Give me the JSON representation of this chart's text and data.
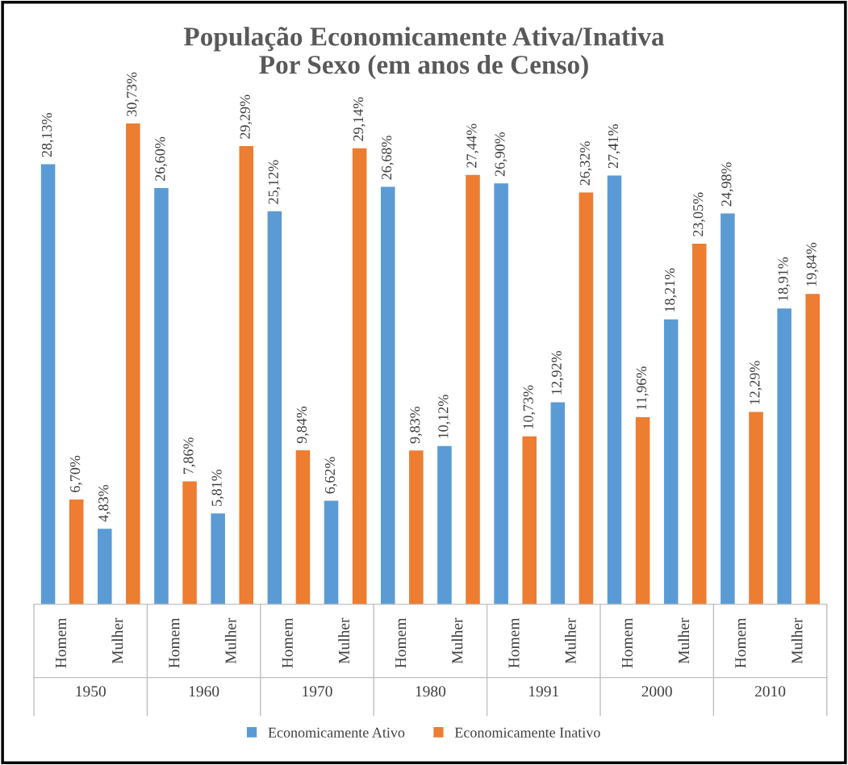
{
  "chart_data": {
    "type": "bar",
    "title": "População Economicamente Ativa/Inativa\nPor Sexo (em anos de Censo)",
    "categories": [
      "Homem",
      "Mulher",
      "Homem",
      "Mulher",
      "Homem",
      "Mulher",
      "Homem",
      "Mulher",
      "Homem",
      "Mulher",
      "Homem",
      "Mulher",
      "Homem",
      "Mulher"
    ],
    "annotations": [
      "1950",
      "1960",
      "1970",
      "1980",
      "1991",
      "2000",
      "2010"
    ],
    "series": [
      {
        "name": "Economicamente Ativo",
        "color": "#5b9bd5",
        "values": [
          28.13,
          4.83,
          26.6,
          5.81,
          25.12,
          6.62,
          26.68,
          10.12,
          26.9,
          12.92,
          27.41,
          18.21,
          24.98,
          18.91
        ],
        "value_labels": [
          "28,13%",
          "4,83%",
          "26,60%",
          "5,81%",
          "25,12%",
          "6,62%",
          "26,68%",
          "10,12%",
          "26,90%",
          "12,92%",
          "27,41%",
          "18,21%",
          "24,98%",
          "18,91%"
        ]
      },
      {
        "name": "Economicamente Inativo",
        "color": "#ed7d31",
        "values": [
          6.7,
          30.73,
          7.86,
          29.29,
          9.84,
          29.14,
          9.83,
          27.44,
          10.73,
          26.32,
          11.96,
          23.05,
          12.29,
          19.84
        ],
        "value_labels": [
          "6,70%",
          "30,73%",
          "7,86%",
          "29,29%",
          "9,84%",
          "29,14%",
          "9,83%",
          "27,44%",
          "10,73%",
          "26,32%",
          "11,96%",
          "23,05%",
          "12,29%",
          "19,84%"
        ]
      }
    ],
    "legend": "bottom",
    "grid": false
  }
}
